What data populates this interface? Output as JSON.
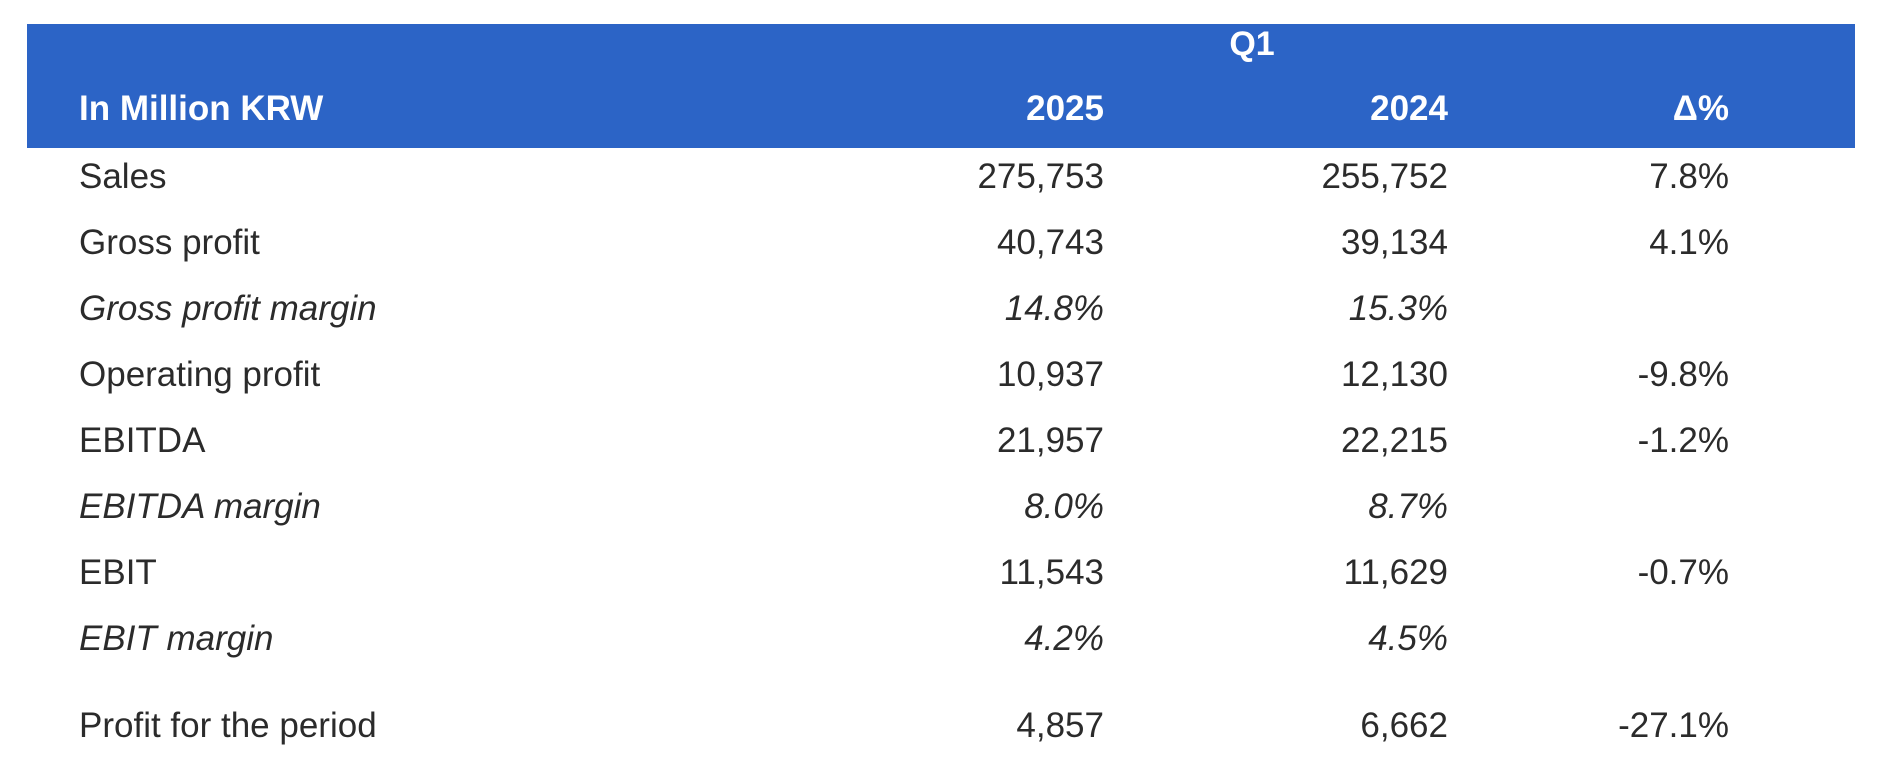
{
  "header": {
    "period": "Q1",
    "label": "In Million KRW",
    "col_2025": "2025",
    "col_2024": "2024",
    "col_delta": "Δ%"
  },
  "rows": [
    {
      "label": "Sales",
      "v2025": "275,753",
      "v2024": "255,752",
      "delta": "7.8%"
    },
    {
      "label": "Gross profit",
      "v2025": "40,743",
      "v2024": "39,134",
      "delta": "4.1%"
    },
    {
      "label": "Gross profit margin",
      "v2025": "14.8%",
      "v2024": "15.3%",
      "delta": ""
    },
    {
      "label": "Operating profit",
      "v2025": "10,937",
      "v2024": "12,130",
      "delta": "-9.8%"
    },
    {
      "label": "EBITDA",
      "v2025": "21,957",
      "v2024": "22,215",
      "delta": "-1.2%"
    },
    {
      "label": "EBITDA margin",
      "v2025": "8.0%",
      "v2024": "8.7%",
      "delta": ""
    },
    {
      "label": "EBIT",
      "v2025": "11,543",
      "v2024": "11,629",
      "delta": "-0.7%"
    },
    {
      "label": "EBIT margin",
      "v2025": "4.2%",
      "v2024": "4.5%",
      "delta": ""
    },
    {
      "label": "Profit for the period",
      "v2025": "4,857",
      "v2024": "6,662",
      "delta": "-27.1%"
    }
  ],
  "colors": {
    "header_background": "#2c64c6",
    "header_text": "#ffffff",
    "body_text": "#2b2b2b"
  }
}
